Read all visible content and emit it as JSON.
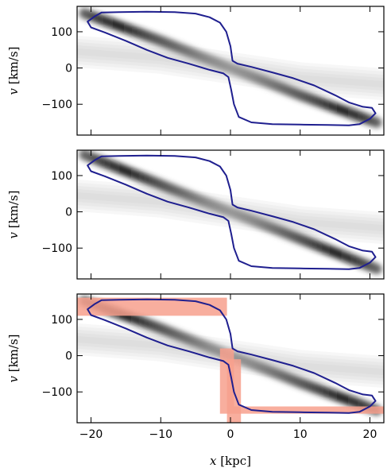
{
  "chart_data": [
    {
      "type": "heatmap",
      "panel": "top",
      "ylabel_var": "v",
      "ylabel_unit": " [km/s]",
      "xlim": [
        -22,
        22
      ],
      "ylim": [
        -185,
        170
      ],
      "xticks": [
        -20,
        -10,
        0,
        10,
        20
      ],
      "yticks": [
        -100,
        0,
        100
      ],
      "ytick_labels": [
        "−100",
        "0",
        "100"
      ],
      "band_x": [
        -18,
        -10,
        0,
        10,
        18
      ],
      "band_v": [
        130,
        75,
        0,
        -75,
        -130
      ],
      "band_peak_x": [
        -16,
        16
      ],
      "contour_color": "#1f1f8f",
      "contour": [
        [
          -20.5,
          128
        ],
        [
          -19.5,
          142
        ],
        [
          -18.5,
          153
        ],
        [
          -16,
          154
        ],
        [
          -12,
          155
        ],
        [
          -8,
          154
        ],
        [
          -5,
          150
        ],
        [
          -3,
          140
        ],
        [
          -1.5,
          125
        ],
        [
          -0.6,
          100
        ],
        [
          0,
          60
        ],
        [
          0.3,
          20
        ],
        [
          1,
          12
        ],
        [
          3,
          3
        ],
        [
          6,
          -12
        ],
        [
          9,
          -28
        ],
        [
          12,
          -48
        ],
        [
          15,
          -75
        ],
        [
          17,
          -95
        ],
        [
          19,
          -107
        ],
        [
          20.3,
          -110
        ],
        [
          20.8,
          -125
        ],
        [
          20,
          -140
        ],
        [
          18.5,
          -155
        ],
        [
          17,
          -158
        ],
        [
          14,
          -157
        ],
        [
          10,
          -156
        ],
        [
          6,
          -155
        ],
        [
          3,
          -150
        ],
        [
          1.2,
          -135
        ],
        [
          0.5,
          -100
        ],
        [
          0.1,
          -60
        ],
        [
          -0.3,
          -25
        ],
        [
          -1,
          -15
        ],
        [
          -3,
          -5
        ],
        [
          -6,
          12
        ],
        [
          -9,
          28
        ],
        [
          -12,
          50
        ],
        [
          -15,
          75
        ],
        [
          -18,
          98
        ],
        [
          -20,
          112
        ],
        [
          -20.5,
          128
        ]
      ]
    },
    {
      "type": "heatmap",
      "panel": "middle",
      "ylabel_var": "v",
      "ylabel_unit": " [km/s]",
      "xlim": [
        -22,
        22
      ],
      "ylim": [
        -185,
        170
      ],
      "xticks": [
        -20,
        -10,
        0,
        10,
        20
      ],
      "yticks": [
        -100,
        0,
        100
      ],
      "ytick_labels": [
        "−100",
        "0",
        "100"
      ],
      "band_x": [
        -18,
        -10,
        0,
        10,
        18
      ],
      "band_v": [
        135,
        75,
        0,
        -75,
        -135
      ],
      "band_peak_x": [
        -15,
        15
      ],
      "contour_color": "#1f1f8f",
      "contour": [
        [
          -20.5,
          128
        ],
        [
          -19.5,
          142
        ],
        [
          -18.5,
          153
        ],
        [
          -16,
          154
        ],
        [
          -12,
          155
        ],
        [
          -8,
          154
        ],
        [
          -5,
          150
        ],
        [
          -3,
          140
        ],
        [
          -1.5,
          125
        ],
        [
          -0.6,
          100
        ],
        [
          0,
          60
        ],
        [
          0.3,
          20
        ],
        [
          1,
          12
        ],
        [
          3,
          3
        ],
        [
          6,
          -12
        ],
        [
          9,
          -28
        ],
        [
          12,
          -48
        ],
        [
          15,
          -75
        ],
        [
          17,
          -95
        ],
        [
          19,
          -107
        ],
        [
          20.3,
          -110
        ],
        [
          20.8,
          -125
        ],
        [
          20,
          -140
        ],
        [
          18.5,
          -155
        ],
        [
          17,
          -158
        ],
        [
          14,
          -157
        ],
        [
          10,
          -156
        ],
        [
          6,
          -155
        ],
        [
          3,
          -150
        ],
        [
          1.2,
          -135
        ],
        [
          0.5,
          -100
        ],
        [
          0.1,
          -60
        ],
        [
          -0.3,
          -25
        ],
        [
          -1,
          -15
        ],
        [
          -3,
          -5
        ],
        [
          -6,
          12
        ],
        [
          -9,
          28
        ],
        [
          -12,
          50
        ],
        [
          -15,
          75
        ],
        [
          -18,
          98
        ],
        [
          -20,
          112
        ],
        [
          -20.5,
          128
        ]
      ]
    },
    {
      "type": "heatmap",
      "panel": "bottom",
      "ylabel_var": "v",
      "ylabel_unit": " [km/s]",
      "xlabel_var": "x",
      "xlabel_unit": " [kpc]",
      "xlim": [
        -22,
        22
      ],
      "ylim": [
        -185,
        170
      ],
      "xticks": [
        -20,
        -10,
        0,
        10,
        20
      ],
      "xtick_labels": [
        "−20",
        "−10",
        "0",
        "10",
        "20"
      ],
      "yticks": [
        -100,
        0,
        100
      ],
      "ytick_labels": [
        "−100",
        "0",
        "100"
      ],
      "band_x": [
        -18,
        -10,
        0,
        10,
        18
      ],
      "band_v": [
        130,
        75,
        0,
        -75,
        -130
      ],
      "band_peak_x": [
        -15,
        16
      ],
      "contour_color": "#1f1f8f",
      "mask_color": "#f7a08d",
      "mask_left": [
        [
          -22,
          160
        ],
        [
          -0.5,
          160
        ],
        [
          -0.5,
          -185
        ],
        [
          1.5,
          -185
        ],
        [
          1.5,
          -10
        ],
        [
          -0.5,
          -10
        ],
        [
          -0.5,
          110
        ],
        [
          -22,
          110
        ]
      ],
      "mask_right": [
        [
          -1.5,
          20
        ],
        [
          0.5,
          20
        ],
        [
          0.5,
          -140
        ],
        [
          22,
          -140
        ],
        [
          22,
          -160
        ],
        [
          -1.5,
          -160
        ]
      ],
      "contour": [
        [
          -20.5,
          128
        ],
        [
          -19.5,
          142
        ],
        [
          -18.5,
          153
        ],
        [
          -16,
          154
        ],
        [
          -12,
          155
        ],
        [
          -8,
          154
        ],
        [
          -5,
          150
        ],
        [
          -3,
          140
        ],
        [
          -1.5,
          125
        ],
        [
          -0.6,
          100
        ],
        [
          0,
          60
        ],
        [
          0.3,
          20
        ],
        [
          1,
          12
        ],
        [
          3,
          3
        ],
        [
          6,
          -12
        ],
        [
          9,
          -28
        ],
        [
          12,
          -48
        ],
        [
          15,
          -75
        ],
        [
          17,
          -95
        ],
        [
          19,
          -107
        ],
        [
          20.3,
          -110
        ],
        [
          20.8,
          -125
        ],
        [
          20,
          -140
        ],
        [
          18.5,
          -155
        ],
        [
          17,
          -158
        ],
        [
          14,
          -157
        ],
        [
          10,
          -156
        ],
        [
          6,
          -155
        ],
        [
          3,
          -150
        ],
        [
          1.2,
          -135
        ],
        [
          0.5,
          -100
        ],
        [
          0.1,
          -60
        ],
        [
          -0.3,
          -25
        ],
        [
          -1,
          -15
        ],
        [
          -3,
          -5
        ],
        [
          -6,
          12
        ],
        [
          -9,
          28
        ],
        [
          -12,
          50
        ],
        [
          -15,
          75
        ],
        [
          -18,
          98
        ],
        [
          -20,
          112
        ],
        [
          -20.5,
          128
        ]
      ]
    }
  ]
}
